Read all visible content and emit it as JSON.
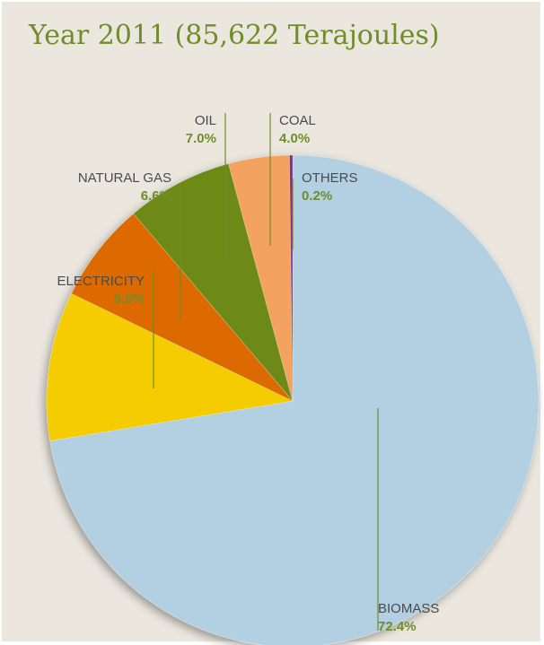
{
  "header": {
    "title": "Year 2011 (85,622 Terajoules)"
  },
  "chart_data": {
    "type": "pie",
    "title": "Year 2011 (85,622 Terajoules)",
    "start": "12 o'clock",
    "direction": "clockwise",
    "slices": [
      {
        "id": "biomass",
        "name": "BIOMASS",
        "value": 72.4,
        "pct_label": "72.4%",
        "color": "#b3d0e3"
      },
      {
        "id": "electricity",
        "name": "ELECTRICITY",
        "value": 9.8,
        "pct_label": "9.8%",
        "color": "#f4cc00"
      },
      {
        "id": "natural-gas",
        "name": "NATURAL GAS",
        "value": 6.6,
        "pct_label": "6.6%",
        "color": "#dd6a06"
      },
      {
        "id": "oil",
        "name": "OIL",
        "value": 7.0,
        "pct_label": "7.0%",
        "color": "#6d8a19"
      },
      {
        "id": "coal",
        "name": "COAL",
        "value": 4.0,
        "pct_label": "4.0%",
        "color": "#f3a25e"
      },
      {
        "id": "others",
        "name": "OTHERS",
        "value": 0.2,
        "pct_label": "0.2%",
        "color": "#8e2b86"
      }
    ],
    "label_text_color": "#4a4a4a",
    "label_value_color": "#6f8d2a",
    "background": "#ebe7df"
  }
}
